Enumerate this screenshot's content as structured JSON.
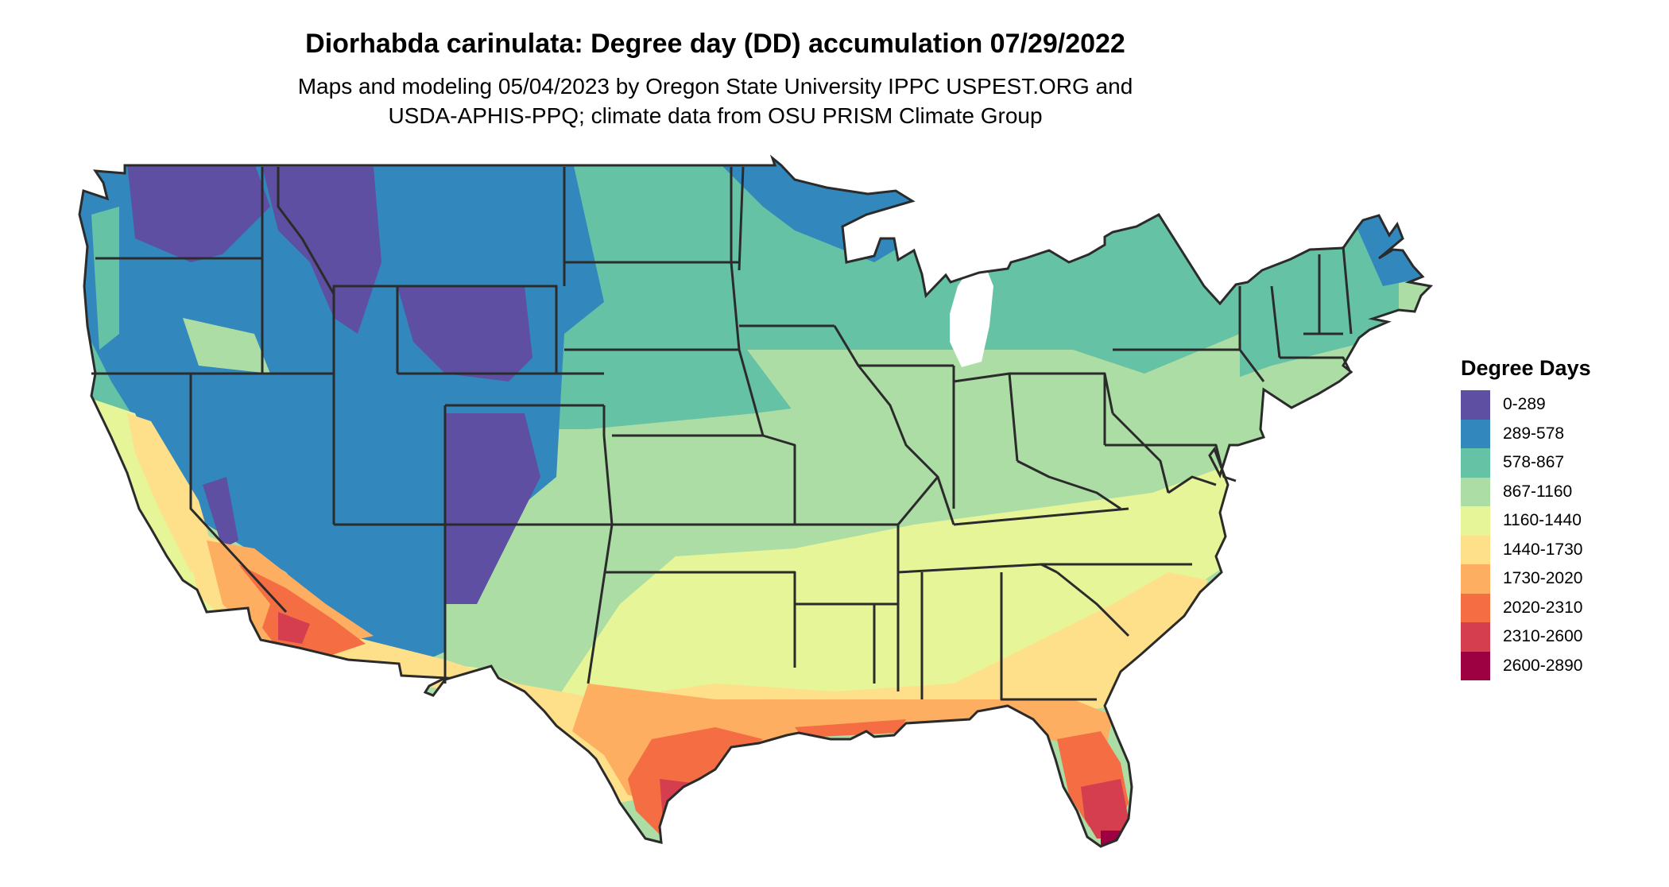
{
  "title": "Diorhabda carinulata: Degree day (DD) accumulation 07/29/2022",
  "subtitle_line1": "Maps and modeling 05/04/2023 by Oregon State University IPPC USPEST.ORG and",
  "subtitle_line2": "USDA-APHIS-PPQ; climate data from OSU PRISM Climate Group",
  "legend": {
    "title": "Degree Days",
    "items": [
      {
        "label": "0-289",
        "color": "#5e4fa2"
      },
      {
        "label": "289-578",
        "color": "#3288bd"
      },
      {
        "label": "578-867",
        "color": "#66c2a5"
      },
      {
        "label": "867-1160",
        "color": "#abdda4"
      },
      {
        "label": "1160-1440",
        "color": "#e6f598"
      },
      {
        "label": "1440-1730",
        "color": "#fee08b"
      },
      {
        "label": "1730-2020",
        "color": "#fdae61"
      },
      {
        "label": "2020-2310",
        "color": "#f46d43"
      },
      {
        "label": "2310-2600",
        "color": "#d53e4f"
      },
      {
        "label": "2600-2890",
        "color": "#9e0142"
      }
    ]
  },
  "colors": {
    "border": "#2b2b2b",
    "water": "#ffffff"
  }
}
